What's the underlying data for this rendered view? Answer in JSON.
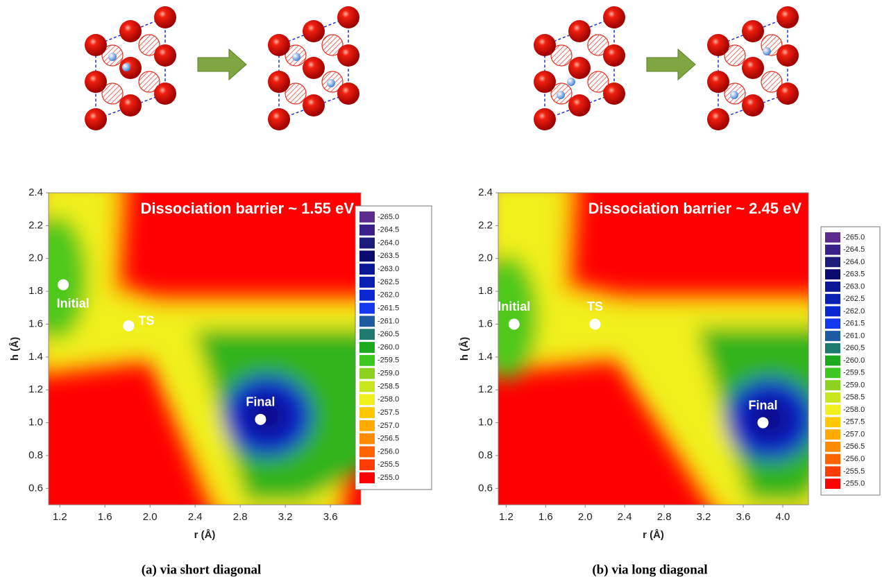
{
  "chart_data": [
    {
      "type": "contour",
      "annotation": "Dissociation barrier ~ 1.55 eV",
      "caption": "(a) via short diagonal",
      "xlabel": "r (Å)",
      "ylabel": "h (Å)",
      "xlim": [
        1.1,
        3.87
      ],
      "ylim": [
        0.5,
        2.4
      ],
      "xticks": [
        1.2,
        1.6,
        {
          "value": 2,
          "label": "2.0"
        },
        2.4,
        2.8,
        3.2,
        3.6
      ],
      "yticks": [
        0.6,
        0.8,
        {
          "value": 1,
          "label": "1.0"
        },
        1.2,
        1.4,
        1.6,
        1.8,
        {
          "value": 2,
          "label": "2.0"
        },
        2.2,
        2.4
      ],
      "points": [
        {
          "label": "Initial",
          "x": 1.23,
          "y": 1.84
        },
        {
          "label": "TS",
          "x": 1.81,
          "y": 1.59
        },
        {
          "label": "Final",
          "x": 2.98,
          "y": 1.02
        }
      ],
      "colorbar": [
        {
          "value": -265,
          "label": "-265.0",
          "color": "#5b2c8e"
        },
        {
          "value": -264.5,
          "label": "-264.5",
          "color": "#3a1f8a"
        },
        {
          "value": -264,
          "label": "-264.0",
          "color": "#1c1a7a"
        },
        {
          "value": -263.5,
          "label": "-263.5",
          "color": "#0a0a6e"
        },
        {
          "value": -263,
          "label": "-263.0",
          "color": "#0a1896"
        },
        {
          "value": -262.5,
          "label": "-262.5",
          "color": "#0a20b4"
        },
        {
          "value": -262,
          "label": "-262.0",
          "color": "#0a28d2"
        },
        {
          "value": -261.5,
          "label": "-261.5",
          "color": "#1438f0"
        },
        {
          "value": -261,
          "label": "-261.0",
          "color": "#1e5aa0"
        },
        {
          "value": -260.5,
          "label": "-260.5",
          "color": "#1e7a6e"
        },
        {
          "value": -260,
          "label": "-260.0",
          "color": "#1eaa1e"
        },
        {
          "value": -259.5,
          "label": "-259.5",
          "color": "#3cc81e"
        },
        {
          "value": -259,
          "label": "-259.0",
          "color": "#8cd21e"
        },
        {
          "value": -258.5,
          "label": "-258.5",
          "color": "#c8e61e"
        },
        {
          "value": -258,
          "label": "-258.0",
          "color": "#f0f01e"
        },
        {
          "value": -257.5,
          "label": "-257.5",
          "color": "#ffc800"
        },
        {
          "value": -257,
          "label": "-257.0",
          "color": "#ffaa00"
        },
        {
          "value": -256.5,
          "label": "-256.5",
          "color": "#ff8c00"
        },
        {
          "value": -256,
          "label": "-256.0",
          "color": "#ff6400"
        },
        {
          "value": -255.5,
          "label": "-255.5",
          "color": "#ff3c00"
        },
        {
          "value": -255,
          "label": "-255.0",
          "color": "#ff0000"
        }
      ]
    },
    {
      "type": "contour",
      "annotation": "Dissociation barrier ~ 2.45 eV",
      "caption": "(b) via long diagonal",
      "xlabel": "r (Å)",
      "ylabel": "h (Å)",
      "xlim": [
        1.12,
        4.26
      ],
      "ylim": [
        0.5,
        2.4
      ],
      "xticks": [
        1.2,
        1.6,
        {
          "value": 2,
          "label": "2.0"
        },
        2.4,
        2.8,
        3.2,
        3.6,
        {
          "value": 4,
          "label": "4.0"
        }
      ],
      "yticks": [
        0.6,
        0.8,
        {
          "value": 1,
          "label": "1.0"
        },
        1.2,
        1.4,
        1.6,
        1.8,
        {
          "value": 2,
          "label": "2.0"
        },
        2.2,
        2.4
      ],
      "points": [
        {
          "label": "Initial",
          "x": 1.28,
          "y": 1.6
        },
        {
          "label": "TS",
          "x": 2.1,
          "y": 1.6
        },
        {
          "label": "Final",
          "x": 3.8,
          "y": 1.0
        }
      ],
      "colorbar": [
        {
          "value": -265,
          "label": "-265.0",
          "color": "#5b2c8e"
        },
        {
          "value": -264.5,
          "label": "-264.5",
          "color": "#3a1f8a"
        },
        {
          "value": -264,
          "label": "-264.0",
          "color": "#1c1a7a"
        },
        {
          "value": -263.5,
          "label": "-263.5",
          "color": "#0a0a6e"
        },
        {
          "value": -263,
          "label": "-263.0",
          "color": "#0a1896"
        },
        {
          "value": -262.5,
          "label": "-262.5",
          "color": "#0a20b4"
        },
        {
          "value": -262,
          "label": "-262.0",
          "color": "#0a28d2"
        },
        {
          "value": -261.5,
          "label": "-261.5",
          "color": "#1438f0"
        },
        {
          "value": -261,
          "label": "-261.0",
          "color": "#1e5aa0"
        },
        {
          "value": -260.5,
          "label": "-260.5",
          "color": "#1e7a6e"
        },
        {
          "value": -260,
          "label": "-260.0",
          "color": "#1eaa1e"
        },
        {
          "value": -259.5,
          "label": "-259.5",
          "color": "#3cc81e"
        },
        {
          "value": -259,
          "label": "-259.0",
          "color": "#8cd21e"
        },
        {
          "value": -258.5,
          "label": "-258.5",
          "color": "#c8e61e"
        },
        {
          "value": -258,
          "label": "-258.0",
          "color": "#f0f01e"
        },
        {
          "value": -257.5,
          "label": "-257.5",
          "color": "#ffc800"
        },
        {
          "value": -257,
          "label": "-257.0",
          "color": "#ffaa00"
        },
        {
          "value": -256.5,
          "label": "-256.5",
          "color": "#ff8c00"
        },
        {
          "value": -256,
          "label": "-256.0",
          "color": "#ff6400"
        },
        {
          "value": -255.5,
          "label": "-255.5",
          "color": "#ff3c00"
        },
        {
          "value": -255,
          "label": "-255.0",
          "color": "#ff0000"
        }
      ]
    }
  ]
}
